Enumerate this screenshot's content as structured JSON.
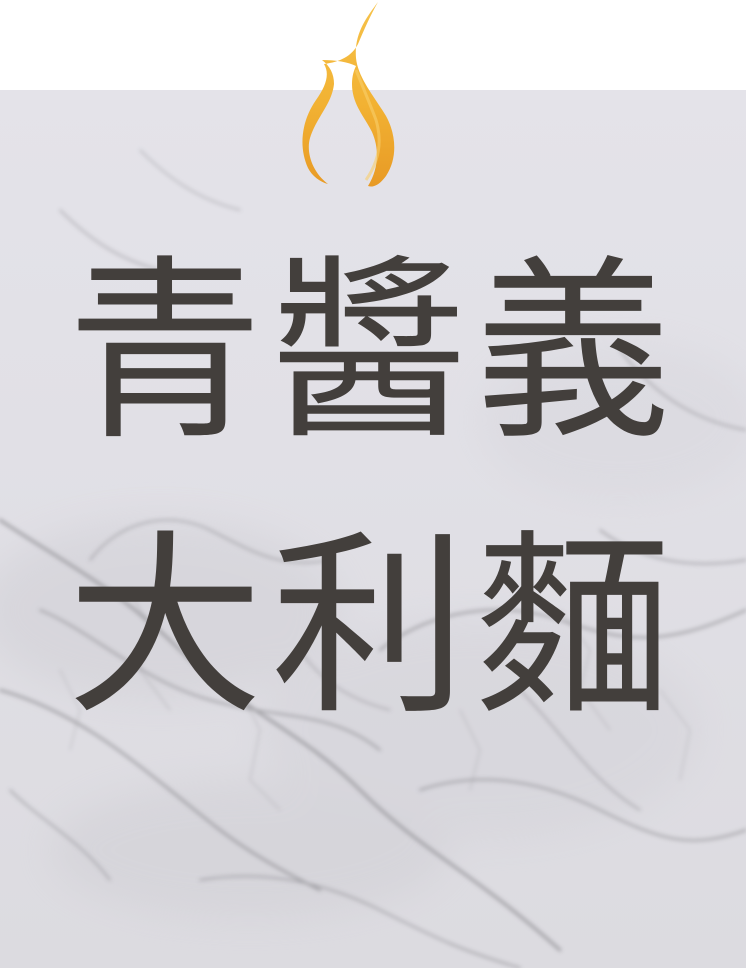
{
  "title": {
    "line1": "青醬義",
    "line2": "大利麵"
  },
  "colors": {
    "text": "#433f3c",
    "marble": "#e1e0e6",
    "veins": "#8f8e93",
    "flame": "#f2b233"
  },
  "icons": {
    "top": "flame-icon"
  }
}
